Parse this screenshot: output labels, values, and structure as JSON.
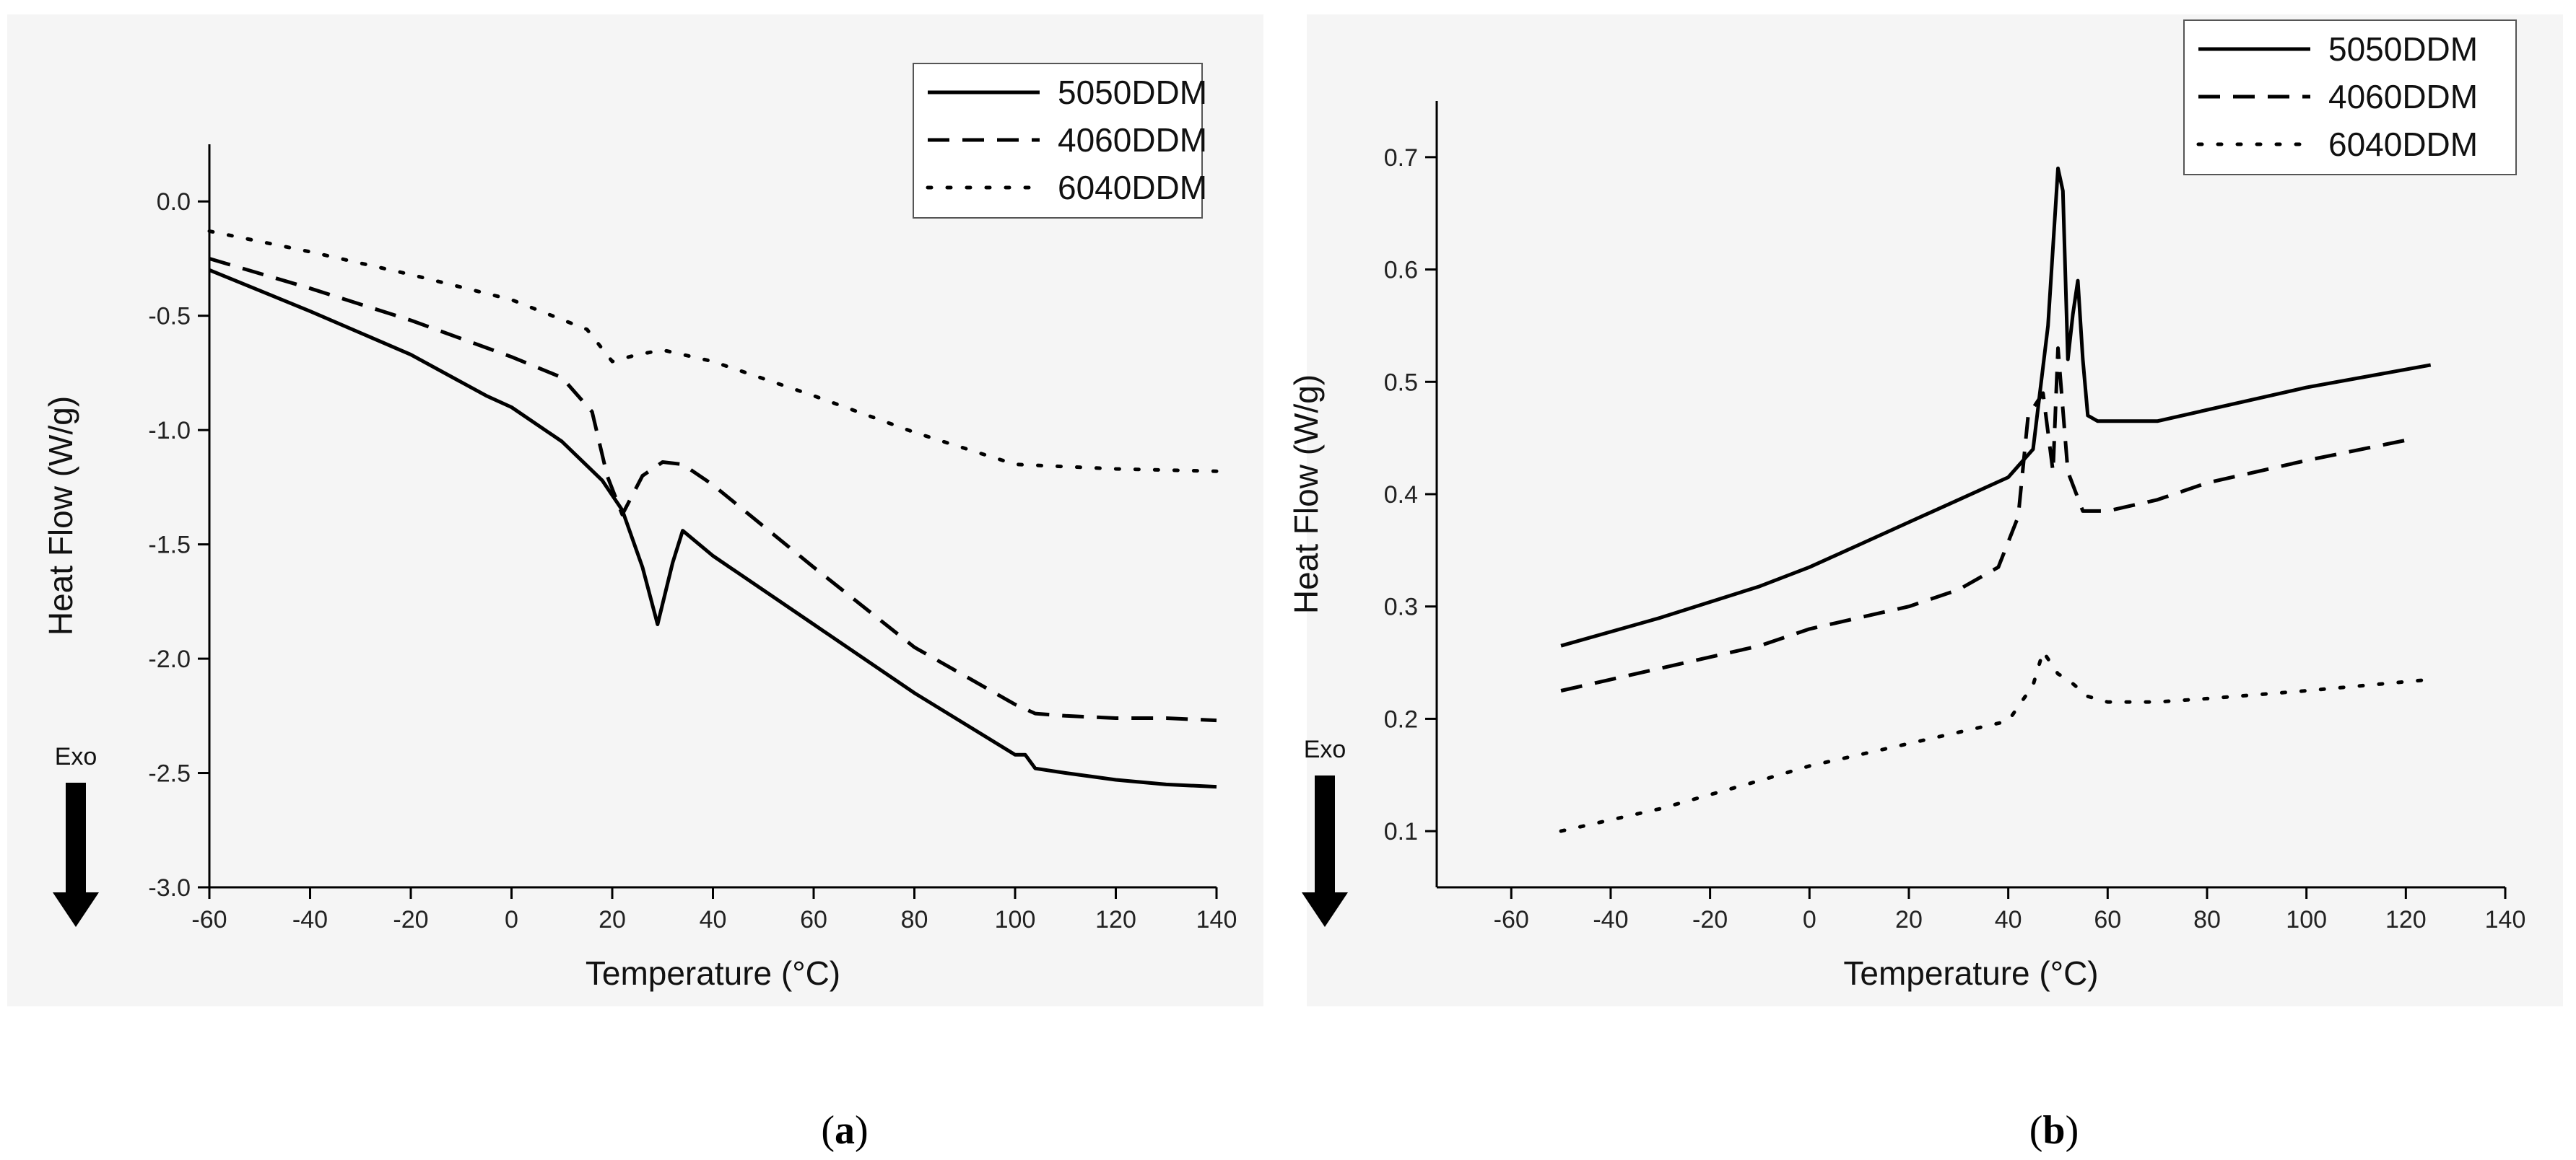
{
  "chart_data": [
    {
      "type": "line",
      "panel_label": "a",
      "xlabel": "Temperature (°C)",
      "ylabel": "Heat Flow (W/g)",
      "xlim": [
        -60,
        140
      ],
      "ylim": [
        -3.0,
        0.25
      ],
      "xticks": [
        -60,
        -40,
        -20,
        0,
        20,
        40,
        60,
        80,
        100,
        120,
        140
      ],
      "yticks": [
        "0.0",
        "-0.5",
        "-1.0",
        "-1.5",
        "-2.0",
        "-2.5",
        "-3.0"
      ],
      "exo_label": "Exo",
      "legend_position": "top-right",
      "series": [
        {
          "name": "5050DDM",
          "style": "solid",
          "x": [
            -60,
            -40,
            -20,
            -5,
            0,
            10,
            18,
            22,
            26,
            29,
            32,
            34,
            40,
            60,
            80,
            100,
            102,
            104,
            110,
            120,
            130,
            140
          ],
          "y": [
            -0.3,
            -0.48,
            -0.67,
            -0.85,
            -0.9,
            -1.05,
            -1.22,
            -1.35,
            -1.6,
            -1.85,
            -1.58,
            -1.44,
            -1.55,
            -1.85,
            -2.15,
            -2.42,
            -2.42,
            -2.48,
            -2.5,
            -2.53,
            -2.55,
            -2.56
          ]
        },
        {
          "name": "4060DDM",
          "style": "dashed",
          "x": [
            -60,
            -40,
            -20,
            0,
            10,
            16,
            19,
            22,
            26,
            30,
            34,
            40,
            60,
            80,
            100,
            104,
            110,
            120,
            130,
            140
          ],
          "y": [
            -0.25,
            -0.38,
            -0.52,
            -0.68,
            -0.77,
            -0.92,
            -1.2,
            -1.37,
            -1.2,
            -1.14,
            -1.15,
            -1.24,
            -1.6,
            -1.95,
            -2.2,
            -2.24,
            -2.25,
            -2.26,
            -2.26,
            -2.27
          ]
        },
        {
          "name": "6040DDM",
          "style": "dotted",
          "x": [
            -60,
            -40,
            -20,
            0,
            15,
            20,
            25,
            30,
            40,
            60,
            80,
            100,
            120,
            140
          ],
          "y": [
            -0.13,
            -0.22,
            -0.32,
            -0.43,
            -0.56,
            -0.7,
            -0.67,
            -0.65,
            -0.7,
            -0.85,
            -1.01,
            -1.15,
            -1.17,
            -1.18
          ]
        }
      ]
    },
    {
      "type": "line",
      "panel_label": "b",
      "xlabel": "Temperature (°C)",
      "ylabel": "Heat Flow (W/g)",
      "xlim": [
        -75,
        140
      ],
      "ylim": [
        0.05,
        0.75
      ],
      "xticks": [
        -60,
        -40,
        -20,
        0,
        20,
        40,
        60,
        80,
        100,
        120,
        140
      ],
      "yticks": [
        "0.1",
        "0.2",
        "0.3",
        "0.4",
        "0.5",
        "0.6",
        "0.7"
      ],
      "exo_label": "Exo",
      "legend_position": "top-right",
      "series": [
        {
          "name": "5050DDM",
          "style": "solid",
          "x": [
            -50,
            -30,
            -10,
            0,
            10,
            20,
            30,
            40,
            45,
            48,
            50,
            51,
            52,
            53,
            54,
            55,
            56,
            58,
            60,
            70,
            80,
            100,
            125
          ],
          "y": [
            0.265,
            0.29,
            0.318,
            0.335,
            0.355,
            0.375,
            0.395,
            0.415,
            0.44,
            0.55,
            0.69,
            0.67,
            0.52,
            0.56,
            0.59,
            0.52,
            0.47,
            0.465,
            0.465,
            0.465,
            0.475,
            0.495,
            0.515
          ]
        },
        {
          "name": "4060DDM",
          "style": "dashed",
          "x": [
            -50,
            -30,
            -10,
            0,
            10,
            20,
            30,
            38,
            42,
            44,
            47,
            49,
            50,
            52,
            55,
            60,
            70,
            80,
            100,
            120
          ],
          "y": [
            0.225,
            0.245,
            0.265,
            0.28,
            0.29,
            0.3,
            0.315,
            0.335,
            0.38,
            0.47,
            0.49,
            0.42,
            0.53,
            0.42,
            0.385,
            0.385,
            0.395,
            0.41,
            0.43,
            0.448
          ]
        },
        {
          "name": "6040DDM",
          "style": "dotted",
          "x": [
            -50,
            -30,
            -10,
            0,
            10,
            20,
            30,
            40,
            45,
            47,
            50,
            52,
            56,
            60,
            70,
            80,
            100,
            125
          ],
          "y": [
            0.1,
            0.12,
            0.145,
            0.158,
            0.168,
            0.178,
            0.188,
            0.198,
            0.23,
            0.26,
            0.24,
            0.235,
            0.22,
            0.215,
            0.215,
            0.218,
            0.225,
            0.235
          ]
        }
      ]
    }
  ],
  "captions": {
    "a": {
      "open": "(",
      "letter": "a",
      "close": ")"
    },
    "b": {
      "open": "(",
      "letter": "b",
      "close": ")"
    }
  }
}
